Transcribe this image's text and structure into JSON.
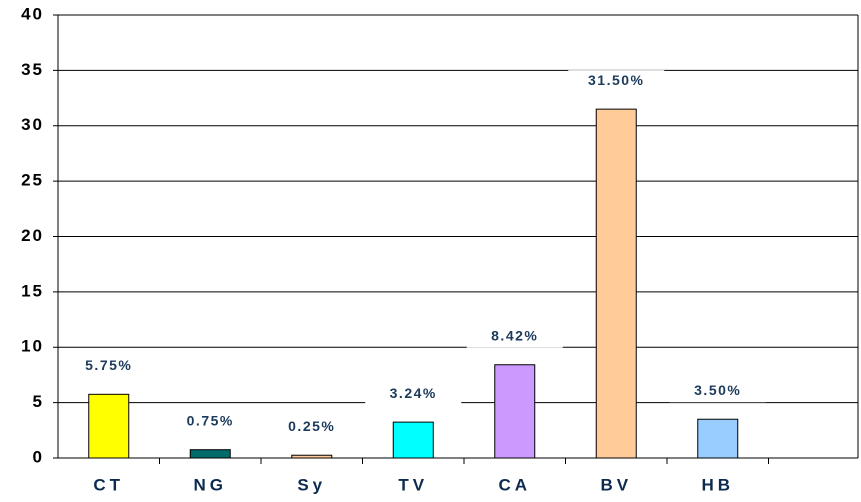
{
  "chart_data": {
    "type": "bar",
    "categories": [
      "CT",
      "NG",
      "Sy",
      "TV",
      "CA",
      "BV",
      "HB",
      null
    ],
    "values": [
      5.75,
      0.75,
      0.25,
      3.24,
      8.42,
      31.5,
      3.5,
      null
    ],
    "value_labels": [
      "5.75%",
      "0.75%",
      "0.25%",
      "3.24%",
      "8.42%",
      "31.50%",
      "3.50%",
      null
    ],
    "colors": [
      "#ffff00",
      "#006b6b",
      "#ffcc99",
      "#00ffff",
      "#cc99ff",
      "#ffcc99",
      "#99ccff",
      null
    ],
    "ylim": [
      0,
      40
    ],
    "yticks": [
      0,
      5,
      10,
      15,
      20,
      25,
      30,
      35,
      40
    ],
    "grid": true
  }
}
